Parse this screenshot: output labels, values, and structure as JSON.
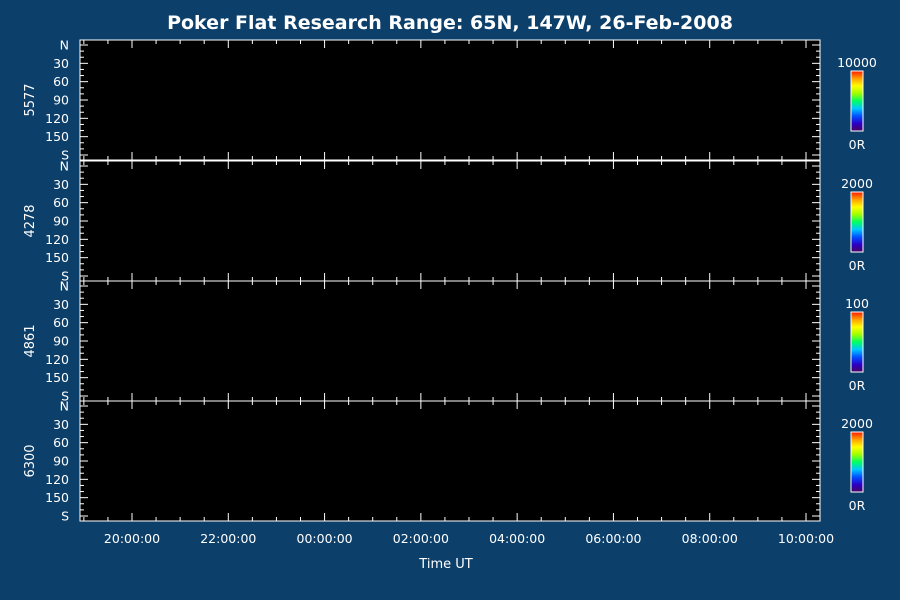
{
  "chart_data": {
    "type": "heatmap",
    "title": "Poker Flat Research Range: 65N, 147W, 26-Feb-2008",
    "xlabel": "Time UT",
    "x_tick_labels": [
      "20:00:00",
      "22:00:00",
      "00:00:00",
      "02:00:00",
      "04:00:00",
      "06:00:00",
      "08:00:00",
      "10:00:00"
    ],
    "y_tick_labels": [
      "N",
      "30",
      "60",
      "90",
      "120",
      "150",
      "S"
    ],
    "panels": [
      {
        "ylabel": "5577",
        "colorbar_max": "10000",
        "colorbar_min": "0R"
      },
      {
        "ylabel": "4278",
        "colorbar_max": "2000",
        "colorbar_min": "0R"
      },
      {
        "ylabel": "4861",
        "colorbar_max": "100",
        "colorbar_min": "0R"
      },
      {
        "ylabel": "6300",
        "colorbar_max": "2000",
        "colorbar_min": "0R"
      }
    ],
    "colors": {
      "background": "#0c3f6a",
      "plot_area": "#000000",
      "axes": "#ffffff"
    },
    "colormap": [
      "#4a0060",
      "#2a00c8",
      "#0050ff",
      "#00c8ff",
      "#00ff60",
      "#a0ff00",
      "#ffff00",
      "#ffa000",
      "#ff1a00"
    ]
  }
}
